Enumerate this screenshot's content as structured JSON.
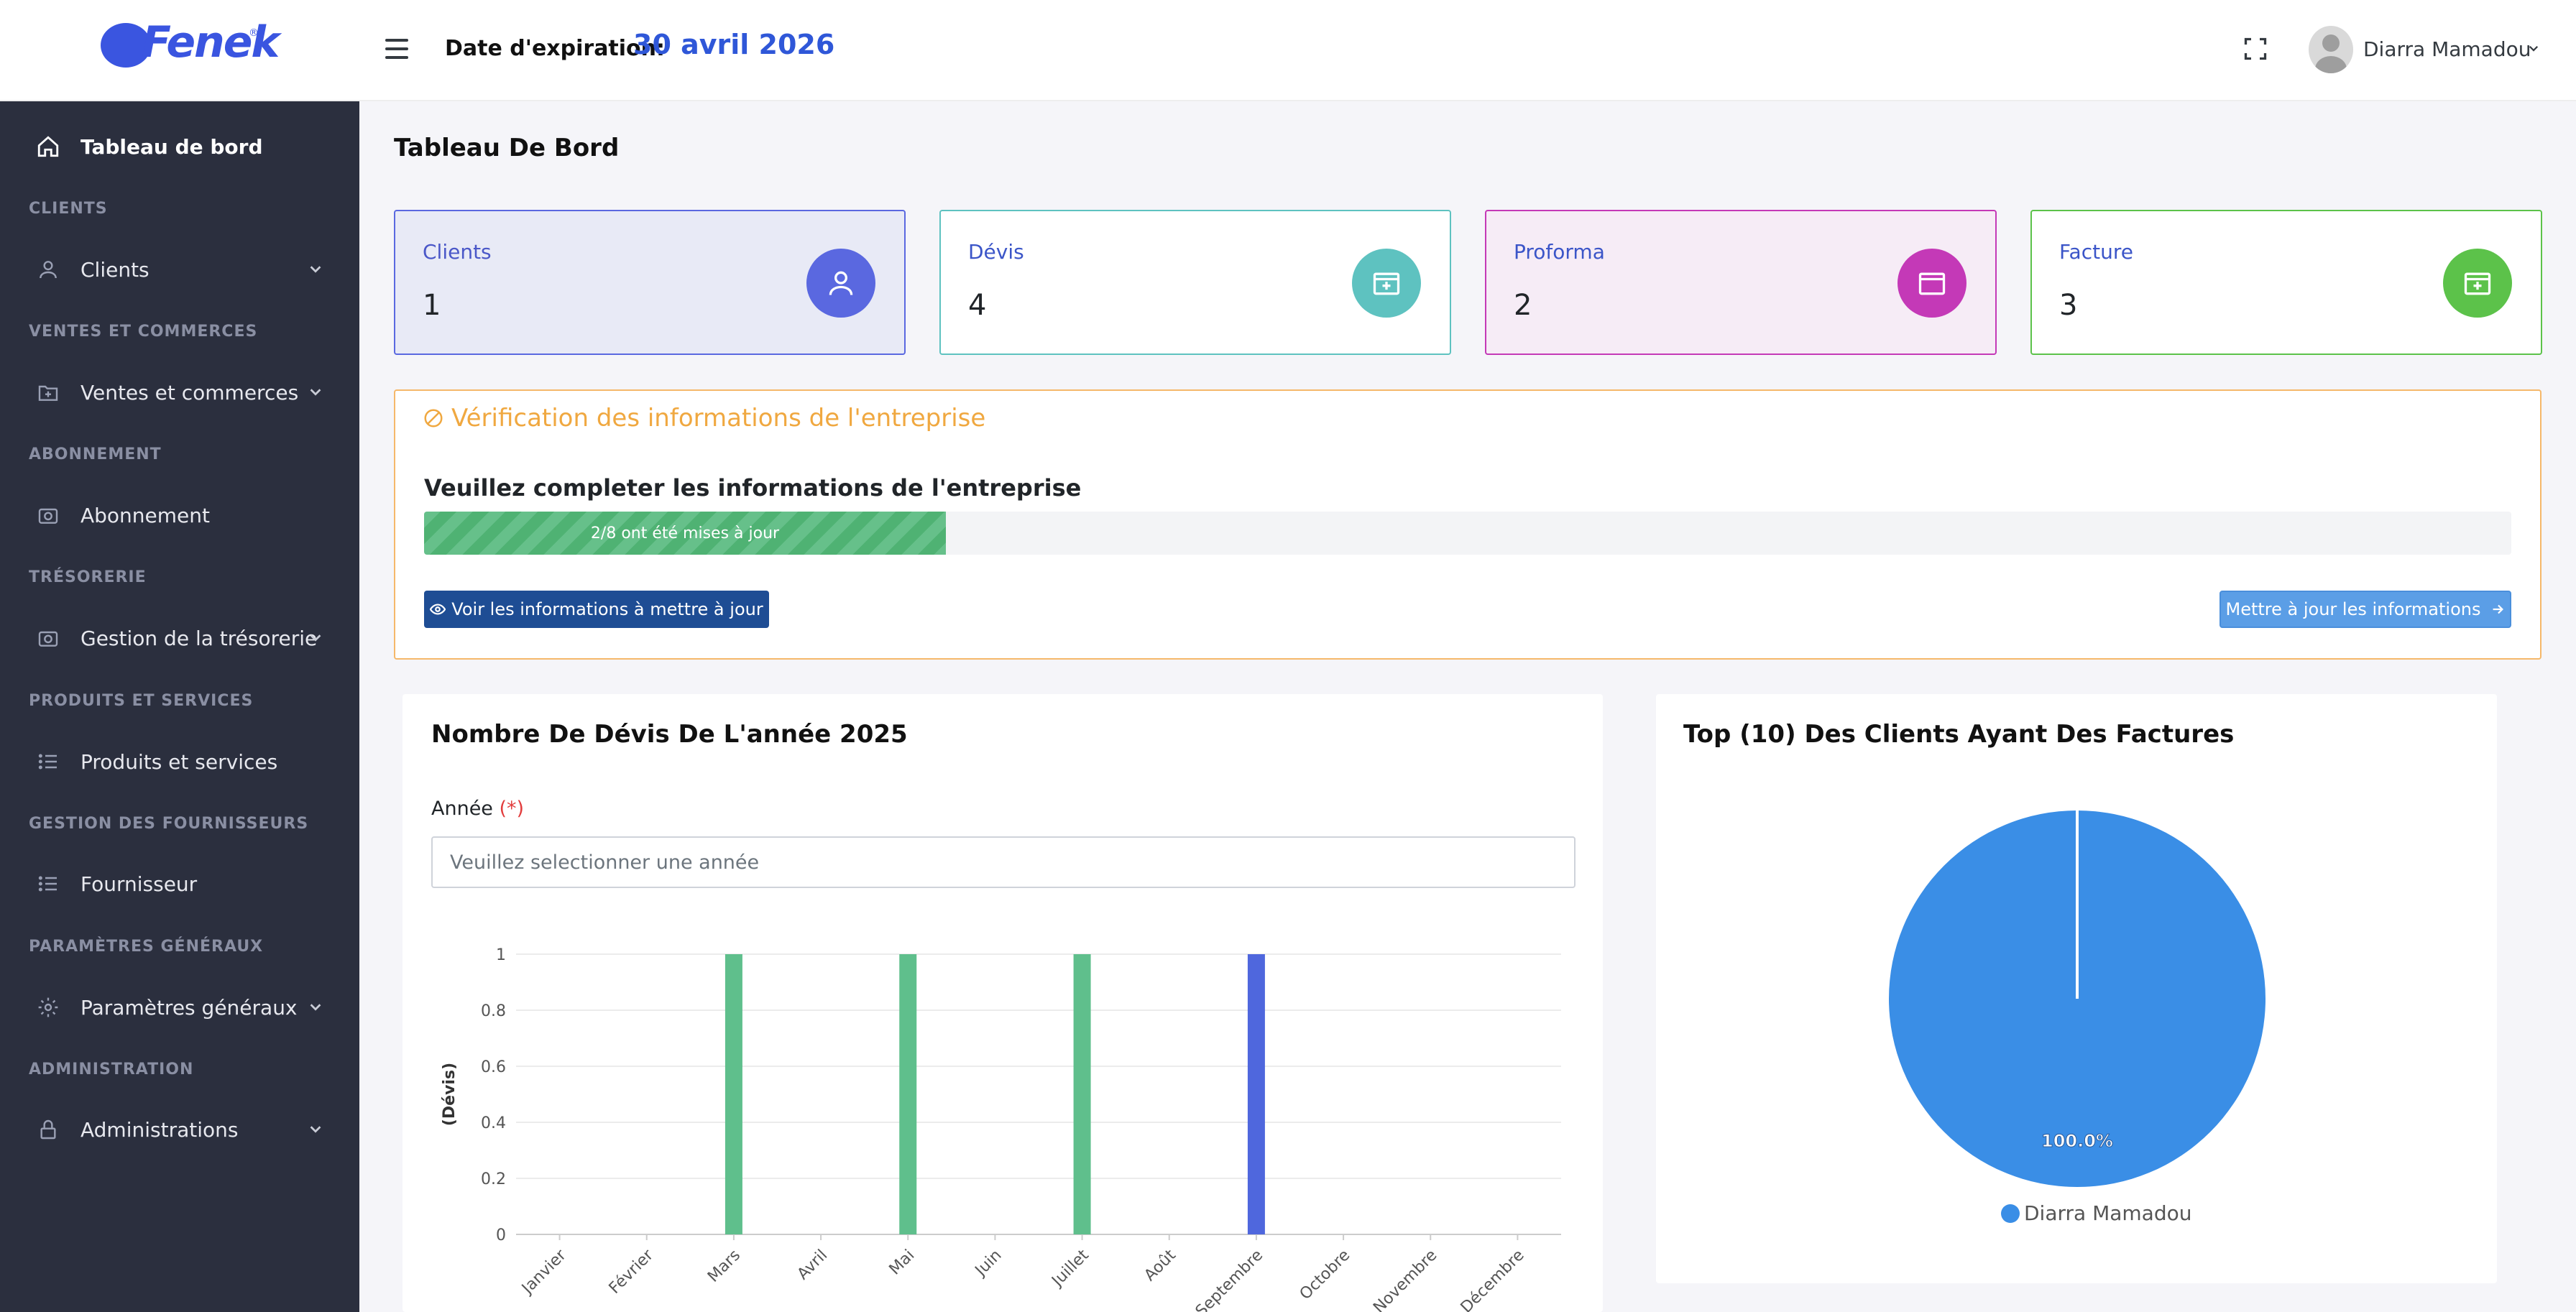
{
  "header": {
    "logo_text": "Fenek",
    "expiration_label": "Date d'expiration:",
    "expiration_date": "30 avril 2026",
    "user_name": "Diarra Mamadou"
  },
  "sidebar": {
    "dashboard": "Tableau de bord",
    "sections": [
      {
        "title": "CLIENTS",
        "item": "Clients",
        "expandable": true,
        "icon": "user-icon"
      },
      {
        "title": "VENTES ET COMMERCES",
        "item": "Ventes et commerces",
        "expandable": true,
        "icon": "folder-plus-icon"
      },
      {
        "title": "ABONNEMENT",
        "item": "Abonnement",
        "expandable": false,
        "icon": "camera-icon"
      },
      {
        "title": "TRÉSORERIE",
        "item": "Gestion de la trésorerie",
        "expandable": true,
        "icon": "camera-icon"
      },
      {
        "title": "PRODUITS ET SERVICES",
        "item": "Produits et services",
        "expandable": false,
        "icon": "list-icon"
      },
      {
        "title": "GESTION DES FOURNISSEURS",
        "item": "Fournisseur",
        "expandable": false,
        "icon": "list-icon"
      },
      {
        "title": "PARAMÈTRES GÉNÉRAUX",
        "item": "Paramètres généraux",
        "expandable": true,
        "icon": "gear-icon"
      },
      {
        "title": "ADMINISTRATION",
        "item": "Administrations",
        "expandable": true,
        "icon": "lock-icon"
      }
    ]
  },
  "page_title": "Tableau De Bord",
  "stats": [
    {
      "label": "Clients",
      "value": "1",
      "icon": "user-icon"
    },
    {
      "label": "Dévis",
      "value": "4",
      "icon": "folder-plus-icon"
    },
    {
      "label": "Proforma",
      "value": "2",
      "icon": "folder-icon"
    },
    {
      "label": "Facture",
      "value": "3",
      "icon": "folder-plus-icon"
    }
  ],
  "colors": {
    "accent": "#2f57d8",
    "sidebar_bg": "#2b2f3e",
    "clients": "#5a68e0",
    "devis": "#5ec2c0",
    "proforma": "#c439b7",
    "facture": "#5cc24a",
    "warning": "#f0a840",
    "bar_green": "#5fbf8c",
    "bar_blue": "#4f67dd",
    "pie_blue": "#3a8ee6"
  },
  "verification": {
    "title": "Vérification des informations de l'entreprise",
    "subtitle": "Veuillez completer les informations de l'entreprise",
    "progress_text": "2/8 ont été mises à jour",
    "progress_fraction": 0.25,
    "view_button": "Voir les informations à mettre à jour",
    "update_button": "Mettre à jour les informations"
  },
  "devis_card": {
    "title": "Nombre De Dévis De L'année 2025",
    "year_label": "Année",
    "year_required": "(*)",
    "year_placeholder": "Veuillez selectionner une année"
  },
  "clients_card": {
    "title": "Top (10) Des Clients Ayant Des Factures"
  },
  "chart_data": [
    {
      "type": "bar",
      "categories": [
        "Janvier",
        "Février",
        "Mars",
        "Avril",
        "Mai",
        "Juin",
        "Juillet",
        "Août",
        "Septembre",
        "Octobre",
        "Novembre",
        "Décembre"
      ],
      "values": [
        0,
        0,
        1,
        0,
        1,
        0,
        1,
        0,
        1,
        0,
        0,
        0
      ],
      "ylabel": "(Dévis)",
      "ylim": [
        0,
        1
      ],
      "yticks": [
        "0",
        "0.2",
        "0.4",
        "0.6",
        "0.8",
        "1"
      ],
      "grid": true
    },
    {
      "type": "pie",
      "series": [
        {
          "name": "Diarra Mamadou",
          "values": [
            100.0
          ]
        }
      ],
      "slice_label": "100.0%",
      "legend": "bottom"
    }
  ]
}
